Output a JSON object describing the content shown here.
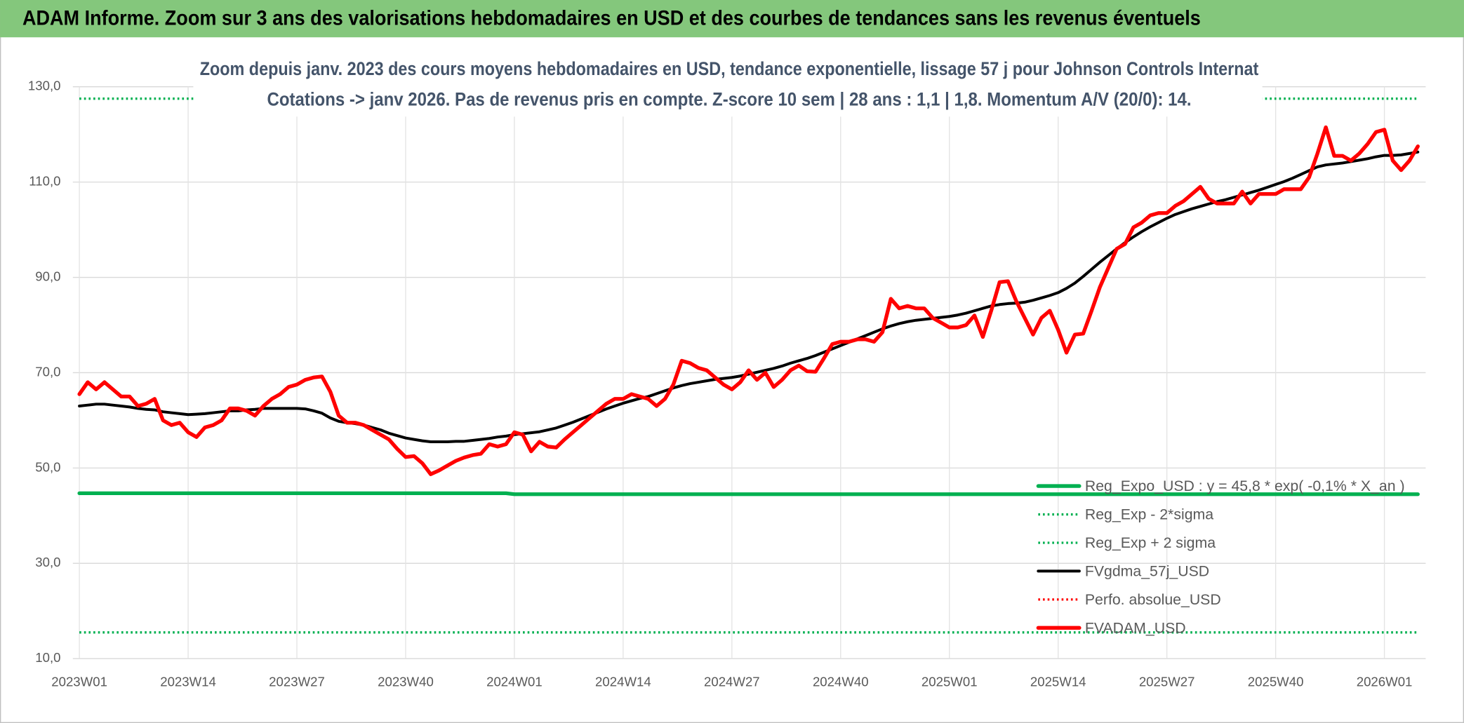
{
  "header": "ADAM Informe. Zoom sur 3 ans des valorisations hebdomadaires en USD et des courbes de tendances sans les revenus éventuels",
  "chart_data": {
    "type": "line",
    "title": "Zoom depuis janv. 2023 des cours moyens hebdomadaires en USD, tendance exponentielle, lissage 57 j pour Johnson Controls Internat",
    "subtitle": "Cotations -> janv 2026. Pas de revenus pris en compte. Z-score 10 sem | 28 ans : 1,1 | 1,8. Momentum A/V (20/0): 14.",
    "categories": [
      "2023W01",
      null,
      null,
      null,
      null,
      null,
      null,
      null,
      null,
      null,
      null,
      null,
      null,
      "2023W14",
      null,
      null,
      null,
      null,
      null,
      null,
      null,
      null,
      null,
      null,
      null,
      null,
      "2023W27",
      null,
      null,
      null,
      null,
      null,
      null,
      null,
      null,
      null,
      null,
      null,
      null,
      "2023W40",
      null,
      null,
      null,
      null,
      null,
      null,
      null,
      null,
      null,
      null,
      null,
      null,
      "2024W01",
      null,
      null,
      null,
      null,
      null,
      null,
      null,
      null,
      null,
      null,
      null,
      null,
      "2024W14",
      null,
      null,
      null,
      null,
      null,
      null,
      null,
      null,
      null,
      null,
      null,
      null,
      "2024W27",
      null,
      null,
      null,
      null,
      null,
      null,
      null,
      null,
      null,
      null,
      null,
      null,
      "2024W40",
      null,
      null,
      null,
      null,
      null,
      null,
      null,
      null,
      null,
      null,
      null,
      null,
      "2025W01",
      null,
      null,
      null,
      null,
      null,
      null,
      null,
      null,
      null,
      null,
      null,
      null,
      "2025W14",
      null,
      null,
      null,
      null,
      null,
      null,
      null,
      null,
      null,
      null,
      null,
      null,
      "2025W27",
      null,
      null,
      null,
      null,
      null,
      null,
      null,
      null,
      null,
      null,
      null,
      null,
      "2025W40",
      null,
      null,
      null,
      null,
      null,
      null,
      null,
      null,
      null,
      null,
      null,
      null,
      "2026W01",
      null,
      null,
      null,
      null
    ],
    "ylim": [
      10,
      130
    ],
    "yticks": [
      {
        "value": 10,
        "label": "10,0"
      },
      {
        "value": 30,
        "label": "30,0"
      },
      {
        "value": 50,
        "label": "50,0"
      },
      {
        "value": 70,
        "label": "70,0"
      },
      {
        "value": 90,
        "label": "90,0"
      },
      {
        "value": 110,
        "label": "110,0"
      },
      {
        "value": 130,
        "label": "130,0"
      }
    ],
    "grid": true,
    "legend": "bottom-right",
    "series": [
      {
        "name": "Reg_Expo_USD : y = 45,8 * exp( -0,1% * X_an )",
        "color": "#00b050",
        "style": "thick",
        "values": [
          44.7,
          44.7,
          44.7,
          44.7,
          44.7,
          44.7,
          44.7,
          44.7,
          44.7,
          44.7,
          44.7,
          44.7,
          44.7,
          44.7,
          44.7,
          44.7,
          44.7,
          44.7,
          44.7,
          44.7,
          44.7,
          44.7,
          44.7,
          44.7,
          44.7,
          44.7,
          44.7,
          44.7,
          44.7,
          44.7,
          44.7,
          44.7,
          44.7,
          44.7,
          44.7,
          44.7,
          44.7,
          44.7,
          44.7,
          44.7,
          44.7,
          44.7,
          44.7,
          44.7,
          44.7,
          44.7,
          44.7,
          44.7,
          44.7,
          44.7,
          44.7,
          44.7,
          44.5,
          44.5,
          44.5,
          44.5,
          44.5,
          44.5,
          44.5,
          44.5,
          44.5,
          44.5,
          44.5,
          44.5,
          44.5,
          44.5,
          44.5,
          44.5,
          44.5,
          44.5,
          44.5,
          44.5,
          44.5,
          44.5,
          44.5,
          44.5,
          44.5,
          44.5,
          44.5,
          44.5,
          44.5,
          44.5,
          44.5,
          44.5,
          44.5,
          44.5,
          44.5,
          44.5,
          44.5,
          44.5,
          44.5,
          44.5,
          44.5,
          44.5,
          44.5,
          44.5,
          44.5,
          44.5,
          44.5,
          44.5,
          44.5,
          44.5,
          44.5,
          44.5,
          44.5,
          44.5,
          44.5,
          44.5,
          44.5,
          44.5,
          44.5,
          44.5,
          44.5,
          44.5,
          44.5,
          44.5,
          44.5,
          44.5,
          44.5,
          44.5,
          44.5,
          44.5,
          44.5,
          44.5,
          44.5,
          44.5,
          44.5,
          44.5,
          44.5,
          44.5,
          44.5,
          44.5,
          44.5,
          44.5,
          44.5,
          44.5,
          44.5,
          44.5,
          44.5,
          44.5,
          44.5,
          44.5,
          44.5,
          44.5,
          44.5,
          44.5,
          44.5,
          44.5,
          44.5,
          44.5,
          44.5,
          44.5,
          44.5,
          44.5,
          44.5,
          44.5,
          44.5,
          44.5,
          44.5,
          44.5,
          44.5
        ]
      },
      {
        "name": "Reg_Exp - 2*sigma",
        "color": "#00b050",
        "style": "dotted",
        "values": [
          15.5,
          15.5,
          15.5,
          15.5,
          15.5,
          15.5,
          15.5,
          15.5,
          15.5,
          15.5,
          15.5,
          15.5,
          15.5,
          15.5,
          15.5,
          15.5,
          15.5,
          15.5,
          15.5,
          15.5,
          15.5,
          15.5,
          15.5,
          15.5,
          15.5,
          15.5,
          15.5,
          15.5,
          15.5,
          15.5,
          15.5,
          15.5,
          15.5,
          15.5,
          15.5,
          15.5,
          15.5,
          15.5,
          15.5,
          15.5,
          15.5,
          15.5,
          15.5,
          15.5,
          15.5,
          15.5,
          15.5,
          15.5,
          15.5,
          15.5,
          15.5,
          15.5,
          15.5,
          15.5,
          15.5,
          15.5,
          15.5,
          15.5,
          15.5,
          15.5,
          15.5,
          15.5,
          15.5,
          15.5,
          15.5,
          15.5,
          15.5,
          15.5,
          15.5,
          15.5,
          15.5,
          15.5,
          15.5,
          15.5,
          15.5,
          15.5,
          15.5,
          15.5,
          15.5,
          15.5,
          15.5,
          15.5,
          15.5,
          15.5,
          15.5,
          15.5,
          15.5,
          15.5,
          15.5,
          15.5,
          15.5,
          15.5,
          15.5,
          15.5,
          15.5,
          15.5,
          15.5,
          15.5,
          15.5,
          15.5,
          15.5,
          15.5,
          15.5,
          15.5,
          15.5,
          15.5,
          15.5,
          15.5,
          15.5,
          15.5,
          15.5,
          15.5,
          15.5,
          15.5,
          15.5,
          15.5,
          15.5,
          15.5,
          15.5,
          15.5,
          15.5,
          15.5,
          15.5,
          15.5,
          15.5,
          15.5,
          15.5,
          15.5,
          15.5,
          15.5,
          15.5,
          15.5,
          15.5,
          15.5,
          15.5,
          15.5,
          15.5,
          15.5,
          15.5,
          15.5,
          15.5,
          15.5,
          15.5,
          15.5,
          15.5,
          15.5,
          15.5,
          15.5,
          15.5,
          15.5,
          15.5,
          15.5,
          15.5,
          15.5,
          15.5,
          15.5,
          15.5,
          15.5,
          15.5,
          15.5,
          15.5
        ]
      },
      {
        "name": "Reg_Exp + 2 sigma",
        "color": "#00b050",
        "style": "dotted",
        "values": [
          127.5,
          127.5,
          127.5,
          127.5,
          127.5,
          127.5,
          127.5,
          127.5,
          127.5,
          127.5,
          127.5,
          127.5,
          127.5,
          127.5,
          127.5,
          127.5,
          127.5,
          127.5,
          127.5,
          127.5,
          127.5,
          127.5,
          127.5,
          127.5,
          127.5,
          127.5,
          127.5,
          127.5,
          127.5,
          127.5,
          127.5,
          127.5,
          127.5,
          127.5,
          127.5,
          127.5,
          127.5,
          127.5,
          127.5,
          127.5,
          127.5,
          127.5,
          127.5,
          127.5,
          127.5,
          127.5,
          127.5,
          127.5,
          127.5,
          127.5,
          127.5,
          127.5,
          127.5,
          127.5,
          127.5,
          127.5,
          127.5,
          127.5,
          127.5,
          127.5,
          127.5,
          127.5,
          127.5,
          127.5,
          127.5,
          127.5,
          127.5,
          127.5,
          127.5,
          127.5,
          127.5,
          127.5,
          127.5,
          127.5,
          127.5,
          127.5,
          127.5,
          127.5,
          127.5,
          127.5,
          127.5,
          127.5,
          127.5,
          127.5,
          127.5,
          127.5,
          127.5,
          127.5,
          127.5,
          127.5,
          127.5,
          127.5,
          127.5,
          127.5,
          127.5,
          127.5,
          127.5,
          127.5,
          127.5,
          127.5,
          127.5,
          127.5,
          127.5,
          127.5,
          127.5,
          127.5,
          127.5,
          127.5,
          127.5,
          127.5,
          127.5,
          127.5,
          127.5,
          127.5,
          127.5,
          127.5,
          127.5,
          127.5,
          127.5,
          127.5,
          127.5,
          127.5,
          127.5,
          127.5,
          127.5,
          127.5,
          127.5,
          127.5,
          127.5,
          127.5,
          127.5,
          127.5,
          127.5,
          127.5,
          127.5,
          127.5,
          127.5,
          127.5,
          127.5,
          127.5,
          127.5,
          127.5,
          127.5,
          127.5,
          127.5,
          127.5,
          127.5,
          127.5,
          127.5,
          127.5,
          127.5,
          127.5,
          127.5,
          127.5,
          127.5,
          127.5,
          127.5,
          127.5,
          127.5,
          127.5,
          127.5
        ]
      },
      {
        "name": "FVgdma_57j_USD",
        "color": "#000000",
        "style": "solid",
        "values": [
          63,
          63.2,
          63.4,
          63.4,
          63.2,
          63,
          62.8,
          62.5,
          62.3,
          62.2,
          61.8,
          61.6,
          61.4,
          61.2,
          61.3,
          61.4,
          61.6,
          61.8,
          62,
          62,
          62.2,
          62.3,
          62.5,
          62.5,
          62.5,
          62.5,
          62.5,
          62.4,
          62,
          61.5,
          60.5,
          59.8,
          59.5,
          59.3,
          59,
          58.5,
          58,
          57.3,
          56.8,
          56.3,
          56,
          55.7,
          55.5,
          55.5,
          55.5,
          55.6,
          55.6,
          55.8,
          56,
          56.2,
          56.5,
          56.7,
          57,
          57.2,
          57.4,
          57.6,
          58,
          58.4,
          59,
          59.6,
          60.3,
          61,
          61.7,
          62.4,
          63,
          63.6,
          64.1,
          64.6,
          65,
          65.6,
          66.2,
          66.8,
          67.3,
          67.7,
          68,
          68.3,
          68.6,
          68.8,
          69,
          69.3,
          69.7,
          70.1,
          70.5,
          70.9,
          71.4,
          72,
          72.5,
          73,
          73.6,
          74.3,
          75,
          75.7,
          76.4,
          77.1,
          77.8,
          78.5,
          79.2,
          79.8,
          80.3,
          80.7,
          81,
          81.2,
          81.4,
          81.6,
          81.8,
          82.1,
          82.5,
          83,
          83.5,
          84,
          84.3,
          84.5,
          84.6,
          84.8,
          85.2,
          85.7,
          86.2,
          86.8,
          87.7,
          88.8,
          90.2,
          91.7,
          93.2,
          94.6,
          96,
          97.3,
          98.5,
          99.6,
          100.6,
          101.5,
          102.4,
          103.2,
          103.8,
          104.4,
          104.9,
          105.4,
          105.9,
          106.3,
          106.8,
          107.3,
          107.8,
          108.3,
          108.9,
          109.5,
          110.1,
          110.8,
          111.6,
          112.4,
          113.2,
          113.6,
          113.8,
          114,
          114.3,
          114.6,
          114.9,
          115.3,
          115.6,
          115.6,
          115.7,
          116,
          116.3
        ]
      },
      {
        "name": "Perfo. absolue_USD",
        "color": "#ff0000",
        "style": "dotted"
      },
      {
        "name": "FVADAM_USD",
        "color": "#ff0000",
        "style": "thick",
        "values": [
          65.5,
          68,
          66.5,
          68,
          66.5,
          65,
          65,
          63,
          63.5,
          64.5,
          60,
          59,
          59.5,
          57.5,
          56.5,
          58.5,
          59,
          60,
          62.5,
          62.5,
          62,
          61,
          63,
          64.5,
          65.5,
          67,
          67.5,
          68.5,
          69,
          69.2,
          66,
          61,
          59.5,
          59.5,
          59,
          58,
          57,
          56,
          54,
          52.3,
          52.5,
          51,
          48.7,
          49.5,
          50.5,
          51.5,
          52.2,
          52.7,
          53,
          55,
          54.5,
          55,
          57.5,
          57,
          53.5,
          55.5,
          54.5,
          54.3,
          56,
          57.5,
          59,
          60.5,
          62,
          63.5,
          64.5,
          64.5,
          65.5,
          65,
          64.5,
          63,
          64.5,
          67.5,
          72.5,
          72,
          71,
          70.5,
          69,
          67.5,
          66.5,
          68,
          70.5,
          68.5,
          70,
          67,
          68.5,
          70.5,
          71.5,
          70.3,
          70.2,
          73,
          76,
          76.5,
          76.5,
          77,
          77,
          76.5,
          78.5,
          85.5,
          83.5,
          84,
          83.5,
          83.5,
          81.5,
          80.5,
          79.5,
          79.5,
          80,
          82,
          77.5,
          83,
          89,
          89.2,
          85,
          81.5,
          78,
          81.5,
          83,
          79,
          74.2,
          78,
          78.2,
          83,
          88,
          92,
          96,
          97,
          100.5,
          101.5,
          103,
          103.5,
          103.5,
          105,
          106,
          107.5,
          109,
          106.5,
          105.5,
          105.5,
          105.5,
          108,
          105.5,
          107.5,
          107.5,
          107.5,
          108.5,
          108.5,
          108.5,
          111,
          116,
          121.5,
          115.5,
          115.5,
          114.5,
          116,
          118,
          120.5,
          121,
          114.5,
          112.5,
          114.5,
          117.5
        ]
      }
    ]
  }
}
